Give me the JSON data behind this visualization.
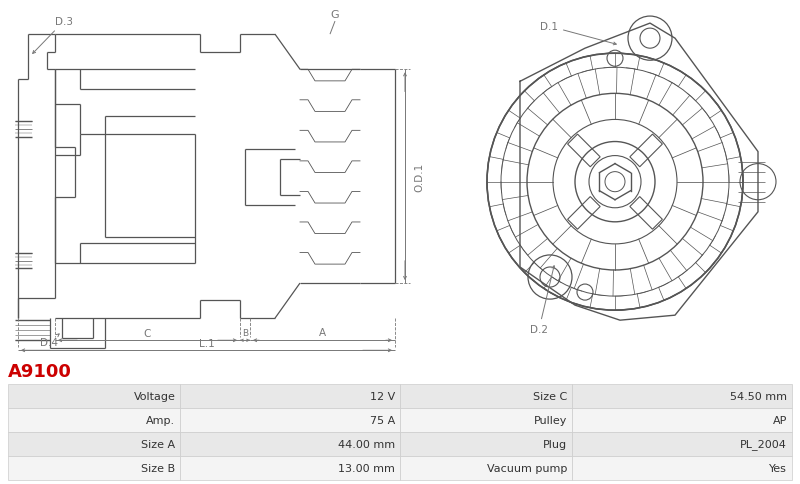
{
  "title_code": "A9100",
  "title_color": "#cc0000",
  "bg_color": "#ffffff",
  "line_color": "#555555",
  "dim_color": "#777777",
  "table_bg_odd": "#e8e8e8",
  "table_bg_even": "#f4f4f4",
  "table_border": "#cccccc",
  "table_data": [
    [
      "Voltage",
      "12 V",
      "Size C",
      "54.50 mm"
    ],
    [
      "Amp.",
      "75 A",
      "Pulley",
      "AP"
    ],
    [
      "Size A",
      "44.00 mm",
      "Plug",
      "PL_2004"
    ],
    [
      "Size B",
      "13.00 mm",
      "Vacuum pump",
      "Yes"
    ]
  ]
}
